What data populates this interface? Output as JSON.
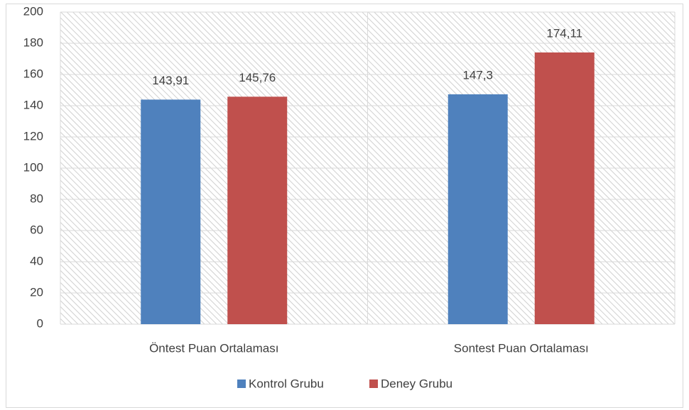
{
  "chart_data": {
    "type": "bar",
    "categories": [
      "Öntest Puan Ortalaması",
      "Sontest Puan Ortalaması"
    ],
    "series": [
      {
        "name": "Kontrol Grubu",
        "color": "#4f81bd",
        "values": [
          143.91,
          147.3
        ],
        "value_labels": [
          "143,91",
          "147,3"
        ]
      },
      {
        "name": "Deney Grubu",
        "color": "#c0504d",
        "values": [
          145.76,
          174.11
        ],
        "value_labels": [
          "145,76",
          "174,11"
        ]
      }
    ],
    "ylim": [
      0,
      200
    ],
    "yticks": [
      0,
      20,
      40,
      60,
      80,
      100,
      120,
      140,
      160,
      180,
      200
    ],
    "grid": true,
    "legend": "bottom"
  }
}
